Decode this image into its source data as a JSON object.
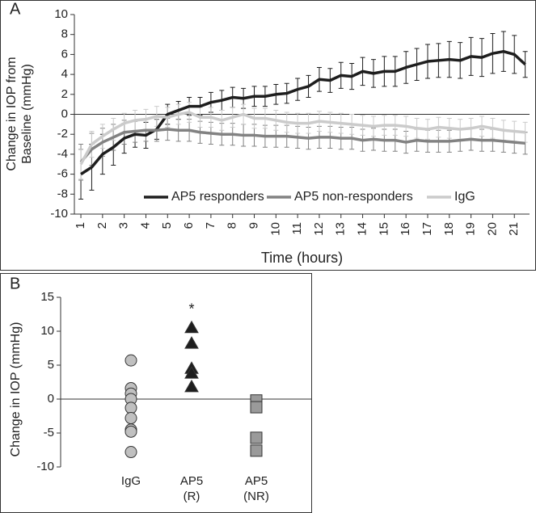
{
  "chart_data": [
    {
      "type": "line",
      "label": "A",
      "xlabel": "Time (hours)",
      "ylabel": "Change in IOP from Baseline (mmHg)",
      "x": [
        1,
        1.5,
        2,
        2.5,
        3,
        3.5,
        4,
        4.5,
        5,
        5.5,
        6,
        6.5,
        7,
        7.5,
        8,
        8.5,
        9,
        9.5,
        10,
        10.5,
        11,
        11.5,
        12,
        12.5,
        13,
        13.5,
        14,
        14.5,
        15,
        15.5,
        16,
        16.5,
        17,
        17.5,
        18,
        18.5,
        19,
        19.5,
        20,
        20.5,
        21,
        21.5
      ],
      "xlim": [
        0.7,
        21.7
      ],
      "xticks": [
        1,
        2,
        3,
        4,
        5,
        6,
        7,
        8,
        9,
        10,
        11,
        12,
        13,
        14,
        15,
        16,
        17,
        18,
        19,
        20,
        21
      ],
      "ylim": [
        -10,
        10
      ],
      "yticks": [
        -10,
        -8,
        -6,
        -4,
        -2,
        0,
        2,
        4,
        6,
        8,
        10
      ],
      "series": [
        {
          "name": "AP5 responders",
          "color": "#1e1e1e",
          "values": [
            -6.0,
            -5.3,
            -4.0,
            -3.3,
            -2.4,
            -2.0,
            -2.1,
            -1.5,
            0.0,
            0.4,
            0.8,
            0.8,
            1.2,
            1.4,
            1.7,
            1.6,
            1.8,
            1.8,
            2.0,
            2.1,
            2.5,
            2.8,
            3.5,
            3.4,
            3.9,
            3.8,
            4.3,
            4.1,
            4.3,
            4.3,
            4.7,
            5.0,
            5.3,
            5.4,
            5.5,
            5.4,
            5.8,
            5.7,
            6.1,
            6.3,
            6.0,
            5.0
          ],
          "errors": [
            2.5,
            2.3,
            2.0,
            1.8,
            1.5,
            1.3,
            1.3,
            1.0,
            1.0,
            0.9,
            0.9,
            0.9,
            1.0,
            1.0,
            1.0,
            1.0,
            1.0,
            1.0,
            1.0,
            1.0,
            1.1,
            1.1,
            1.2,
            1.2,
            1.3,
            1.3,
            1.4,
            1.4,
            1.5,
            1.5,
            1.6,
            1.6,
            1.7,
            1.7,
            1.8,
            1.8,
            1.9,
            1.9,
            2.0,
            2.0,
            1.9,
            1.3
          ]
        },
        {
          "name": "AP5 non-responders",
          "color": "#828282",
          "values": [
            -4.8,
            -3.5,
            -2.8,
            -2.3,
            -1.8,
            -1.7,
            -1.6,
            -1.6,
            -1.5,
            -1.6,
            -1.6,
            -1.8,
            -1.9,
            -2.0,
            -2.0,
            -2.1,
            -2.1,
            -2.2,
            -2.2,
            -2.2,
            -2.3,
            -2.4,
            -2.3,
            -2.3,
            -2.4,
            -2.4,
            -2.6,
            -2.5,
            -2.6,
            -2.6,
            -2.8,
            -2.6,
            -2.7,
            -2.7,
            -2.7,
            -2.6,
            -2.5,
            -2.6,
            -2.6,
            -2.7,
            -2.8,
            -2.9
          ],
          "errors": [
            1.8,
            1.6,
            1.4,
            1.3,
            1.2,
            1.1,
            1.1,
            1.1,
            1.1,
            1.1,
            1.1,
            1.1,
            1.1,
            1.1,
            1.1,
            1.1,
            1.1,
            1.1,
            1.1,
            1.1,
            1.1,
            1.1,
            1.1,
            1.1,
            1.1,
            1.1,
            1.1,
            1.1,
            1.1,
            1.1,
            1.1,
            1.1,
            1.1,
            1.1,
            1.1,
            1.1,
            1.1,
            1.1,
            1.1,
            1.1,
            1.1,
            1.1
          ]
        },
        {
          "name": "IgG",
          "color": "#cbcbcb",
          "values": [
            -5.0,
            -3.0,
            -2.2,
            -1.5,
            -0.9,
            -0.6,
            -0.5,
            -0.2,
            -0.3,
            0.0,
            0.2,
            -0.3,
            -0.3,
            -0.6,
            -0.3,
            0.0,
            -0.4,
            -0.4,
            -0.6,
            -0.8,
            -0.9,
            -0.9,
            -0.7,
            -0.8,
            -0.9,
            -1.0,
            -1.1,
            -1.2,
            -1.1,
            -1.1,
            -1.2,
            -1.4,
            -1.5,
            -1.3,
            -1.4,
            -1.5,
            -1.4,
            -1.2,
            -1.4,
            -1.6,
            -1.7,
            -1.8
          ],
          "errors": [
            1.5,
            1.3,
            1.2,
            1.1,
            1.0,
            1.0,
            1.0,
            1.0,
            1.0,
            1.0,
            1.0,
            1.0,
            1.0,
            1.0,
            1.0,
            1.0,
            1.0,
            1.0,
            1.0,
            1.0,
            1.0,
            1.0,
            1.0,
            1.0,
            1.0,
            1.0,
            1.0,
            1.0,
            1.0,
            1.0,
            1.0,
            1.0,
            1.0,
            1.0,
            1.0,
            1.0,
            1.0,
            1.0,
            1.0,
            1.0,
            1.0,
            1.0
          ]
        }
      ]
    },
    {
      "type": "strip",
      "label": "B",
      "ylabel": "Change in IOP (mmHg)",
      "categories": [
        "IgG",
        "AP5 (R)",
        "AP5 (NR)"
      ],
      "values": [
        [
          5.7,
          1.6,
          0.8,
          0.0,
          -1.3,
          -2.8,
          -4.5,
          -4.8,
          -7.8
        ],
        [
          10.5,
          8.2,
          4.5,
          3.8,
          1.8
        ],
        [
          -0.2,
          -1.2,
          -5.7,
          -7.6
        ]
      ],
      "markers": [
        "circle",
        "triangle",
        "square"
      ],
      "colors": [
        "#c0c0c0",
        "#1e1e1e",
        "#9a9a9a"
      ],
      "annotation": "*",
      "ylim": [
        -10,
        15
      ],
      "yticks": [
        -10,
        -5,
        0,
        5,
        10,
        15
      ]
    }
  ]
}
